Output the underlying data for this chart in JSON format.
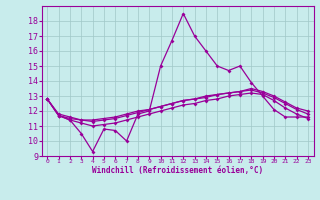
{
  "xlabel": "Windchill (Refroidissement éolien,°C)",
  "x": [
    0,
    1,
    2,
    3,
    4,
    5,
    6,
    7,
    8,
    9,
    10,
    11,
    12,
    13,
    14,
    15,
    16,
    17,
    18,
    19,
    20,
    21,
    22,
    23
  ],
  "line1": [
    12.8,
    11.7,
    11.4,
    10.5,
    9.3,
    10.8,
    10.7,
    10.0,
    11.8,
    12.0,
    15.0,
    16.7,
    18.5,
    17.0,
    16.0,
    15.0,
    14.7,
    15.0,
    13.9,
    13.0,
    12.1,
    11.6,
    11.6,
    11.6
  ],
  "line2": [
    12.8,
    11.7,
    11.5,
    11.4,
    11.4,
    11.5,
    11.6,
    11.8,
    12.0,
    12.1,
    12.3,
    12.5,
    12.7,
    12.8,
    12.9,
    13.1,
    13.2,
    13.3,
    13.4,
    13.2,
    12.9,
    12.5,
    12.1,
    11.8
  ],
  "line3": [
    12.8,
    11.8,
    11.6,
    11.4,
    11.3,
    11.4,
    11.5,
    11.7,
    11.9,
    12.1,
    12.3,
    12.5,
    12.7,
    12.8,
    13.0,
    13.1,
    13.2,
    13.3,
    13.5,
    13.3,
    13.0,
    12.6,
    12.2,
    12.0
  ],
  "line4": [
    12.8,
    11.7,
    11.4,
    11.2,
    11.0,
    11.1,
    11.2,
    11.4,
    11.6,
    11.8,
    12.0,
    12.2,
    12.4,
    12.5,
    12.7,
    12.8,
    13.0,
    13.1,
    13.2,
    13.1,
    12.7,
    12.2,
    11.8,
    11.5
  ],
  "line_color": "#990099",
  "bg_color": "#c8ecec",
  "grid_color": "#a0c8c8",
  "ylim": [
    9,
    19
  ],
  "yticks": [
    9,
    10,
    11,
    12,
    13,
    14,
    15,
    16,
    17,
    18
  ],
  "xticks": [
    0,
    1,
    2,
    3,
    4,
    5,
    6,
    7,
    8,
    9,
    10,
    11,
    12,
    13,
    14,
    15,
    16,
    17,
    18,
    19,
    20,
    21,
    22,
    23
  ],
  "marker": "D",
  "markersize": 2.0,
  "linewidth": 0.9
}
